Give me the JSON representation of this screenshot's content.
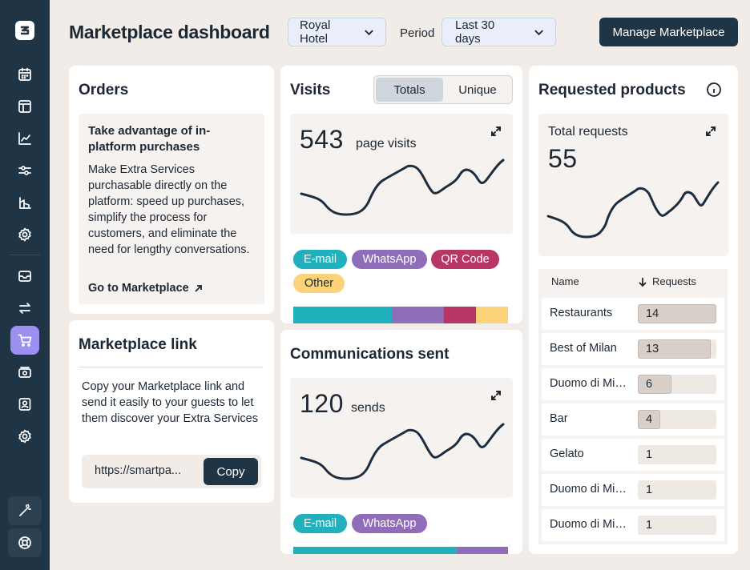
{
  "colors": {
    "sidebar_bg": "#1f3445",
    "sidebar_active": "#9b8ff0",
    "primary_button": "#1f3445",
    "email": "#21b1bd",
    "whatsapp": "#8f6db9",
    "qrcode": "#b83665",
    "other": "#fdd37a",
    "page_bg": "#f1ece8"
  },
  "sidebar": {
    "logo_icon": "smartpricing-logo-icon",
    "items": [
      {
        "icon": "calendar-icon",
        "active": false
      },
      {
        "icon": "layout-icon",
        "active": false
      },
      {
        "icon": "chart-line-icon",
        "active": false
      },
      {
        "icon": "sliders-icon",
        "active": false
      },
      {
        "icon": "building-chart-icon",
        "active": false
      },
      {
        "icon": "gear-icon",
        "active": false
      },
      {
        "icon": "mail-icon",
        "active": false
      },
      {
        "icon": "arrows-swap-icon",
        "active": false
      },
      {
        "icon": "cart-icon",
        "active": true
      },
      {
        "icon": "money-icon",
        "active": false
      },
      {
        "icon": "user-badge-icon",
        "active": false
      },
      {
        "icon": "gear-icon",
        "active": false
      }
    ],
    "bottom": [
      "magic-wand-icon",
      "lifebuoy-icon"
    ]
  },
  "header": {
    "title": "Marketplace dashboard",
    "property_select": "Royal Hotel",
    "period_label": "Period",
    "period_select": "Last 30 days",
    "manage_button": "Manage Marketplace"
  },
  "orders": {
    "title": "Orders",
    "promo_title": "Take advantage of in-platform purchases",
    "promo_body": "Make Extra Services purchasable directly on the platform: speed up purchases, simplify the process for customers, and eliminate the need for lengthy conversations.",
    "promo_link": "Go to Marketplace"
  },
  "marketplace_link": {
    "title": "Marketplace link",
    "description": "Copy your Marketplace link and send it easily to your guests to let them discover your Extra Services",
    "url": "https://smartpa...",
    "copy_button": "Copy"
  },
  "visits": {
    "title": "Visits",
    "toggle": [
      "Totals",
      "Unique"
    ],
    "selected_toggle": "Totals",
    "value": "543",
    "unit": "page visits",
    "channels": [
      "E-mail",
      "WhatsApp",
      "QR Code",
      "Other"
    ],
    "channel_share": [
      0.46,
      0.24,
      0.15,
      0.15
    ]
  },
  "communications": {
    "title": "Communications sent",
    "value": "120",
    "unit": "sends",
    "channels": [
      "E-mail",
      "WhatsApp"
    ],
    "channel_share": [
      0.76,
      0.24
    ]
  },
  "requested": {
    "title": "Requested products",
    "total_label": "Total requests",
    "total_value": "55",
    "col_name": "Name",
    "col_requests": "Requests",
    "max_requests": 14,
    "rows": [
      {
        "name": "Restaurants",
        "requests": "14",
        "value": 14
      },
      {
        "name": "Best of Milan",
        "requests": "13",
        "value": 13
      },
      {
        "name": "Duomo di Milano",
        "requests": "6",
        "value": 6
      },
      {
        "name": "Bar",
        "requests": "4",
        "value": 4
      },
      {
        "name": "Gelato",
        "requests": "1",
        "value": 1
      },
      {
        "name": "Duomo di Milano",
        "requests": "1",
        "value": 1
      },
      {
        "name": "Duomo di Milano",
        "requests": "1",
        "value": 1
      }
    ]
  }
}
